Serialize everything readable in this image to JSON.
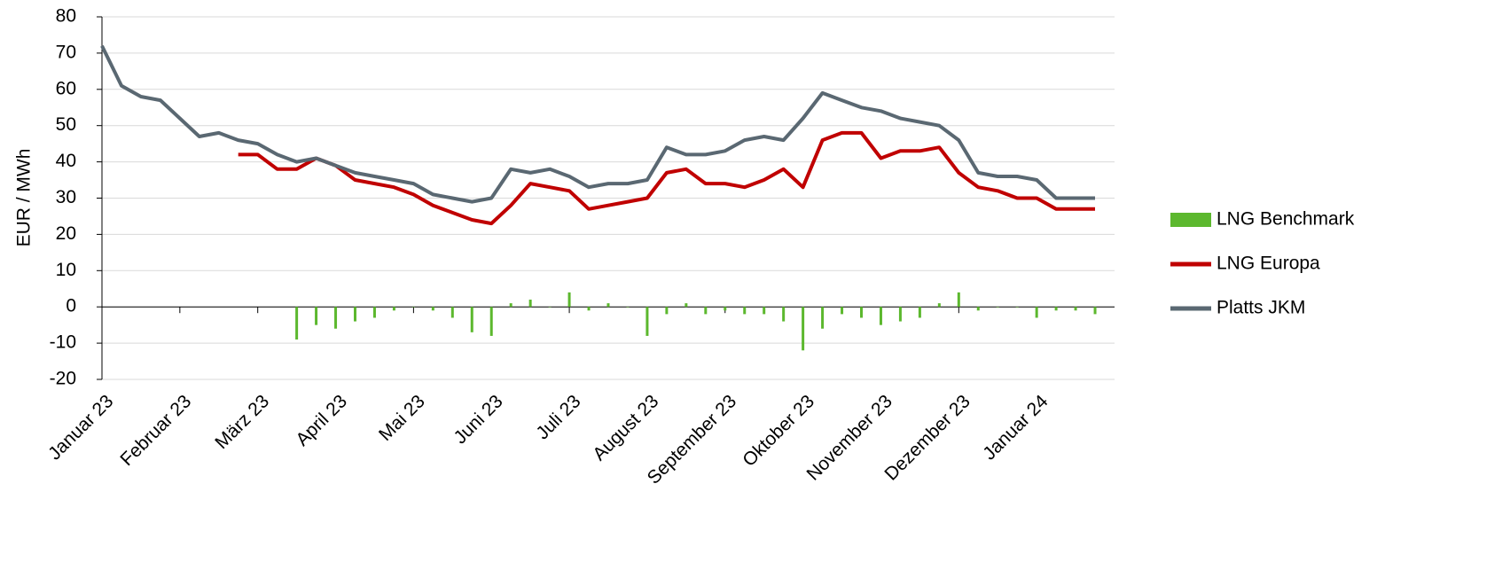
{
  "chart_data": {
    "type": "line",
    "y_label": "EUR / MWh",
    "categories": [
      "Januar 23",
      null,
      null,
      null,
      "Februar 23",
      null,
      null,
      null,
      "März 23",
      null,
      null,
      null,
      "April 23",
      null,
      null,
      null,
      "Mai 23",
      null,
      null,
      null,
      "Juni 23",
      null,
      null,
      null,
      "Juli 23",
      null,
      null,
      null,
      "August 23",
      null,
      null,
      null,
      "September 23",
      null,
      null,
      null,
      "Oktober 23",
      null,
      null,
      null,
      "November 23",
      null,
      null,
      null,
      "Dezember 23",
      null,
      null,
      null,
      "Januar 24",
      null,
      null,
      null
    ],
    "series": [
      {
        "name": "LNG Benchmark",
        "type": "bar",
        "color": "#5cb82e",
        "values": [
          null,
          null,
          null,
          null,
          null,
          null,
          null,
          null,
          null,
          null,
          -9,
          -5,
          -6,
          -4,
          -3,
          -1,
          0,
          -1,
          -3,
          -7,
          -8,
          1,
          2,
          0,
          4,
          -1,
          1,
          0,
          -8,
          -2,
          1,
          -2,
          -1,
          -2,
          -2,
          -4,
          -12,
          -6,
          -2,
          -3,
          -5,
          -4,
          -3,
          1,
          4,
          -1,
          0,
          0,
          -3,
          -1,
          -1,
          -2
        ]
      },
      {
        "name": "LNG Europa",
        "type": "line",
        "color": "#c00000",
        "values": [
          null,
          null,
          null,
          null,
          null,
          null,
          null,
          42,
          42,
          38,
          38,
          41,
          39,
          35,
          34,
          33,
          31,
          28,
          26,
          24,
          23,
          28,
          34,
          33,
          32,
          27,
          28,
          29,
          30,
          37,
          38,
          34,
          34,
          33,
          35,
          38,
          33,
          46,
          48,
          48,
          41,
          43,
          43,
          44,
          37,
          33,
          32,
          30,
          30,
          27,
          27,
          27
        ]
      },
      {
        "name": "Platts JKM",
        "type": "line",
        "color": "#5a6872",
        "values": [
          72,
          61,
          58,
          57,
          52,
          47,
          48,
          46,
          45,
          42,
          40,
          41,
          39,
          37,
          36,
          35,
          34,
          31,
          30,
          29,
          30,
          38,
          37,
          38,
          36,
          33,
          34,
          34,
          35,
          44,
          42,
          42,
          43,
          46,
          47,
          46,
          52,
          59,
          57,
          55,
          54,
          52,
          51,
          50,
          46,
          37,
          36,
          36,
          35,
          30,
          30,
          30
        ]
      }
    ],
    "ylim": [
      -20,
      80
    ],
    "yticks": [
      -20,
      -10,
      0,
      10,
      20,
      30,
      40,
      50,
      60,
      70,
      80
    ],
    "grid": true,
    "legend": "right"
  }
}
